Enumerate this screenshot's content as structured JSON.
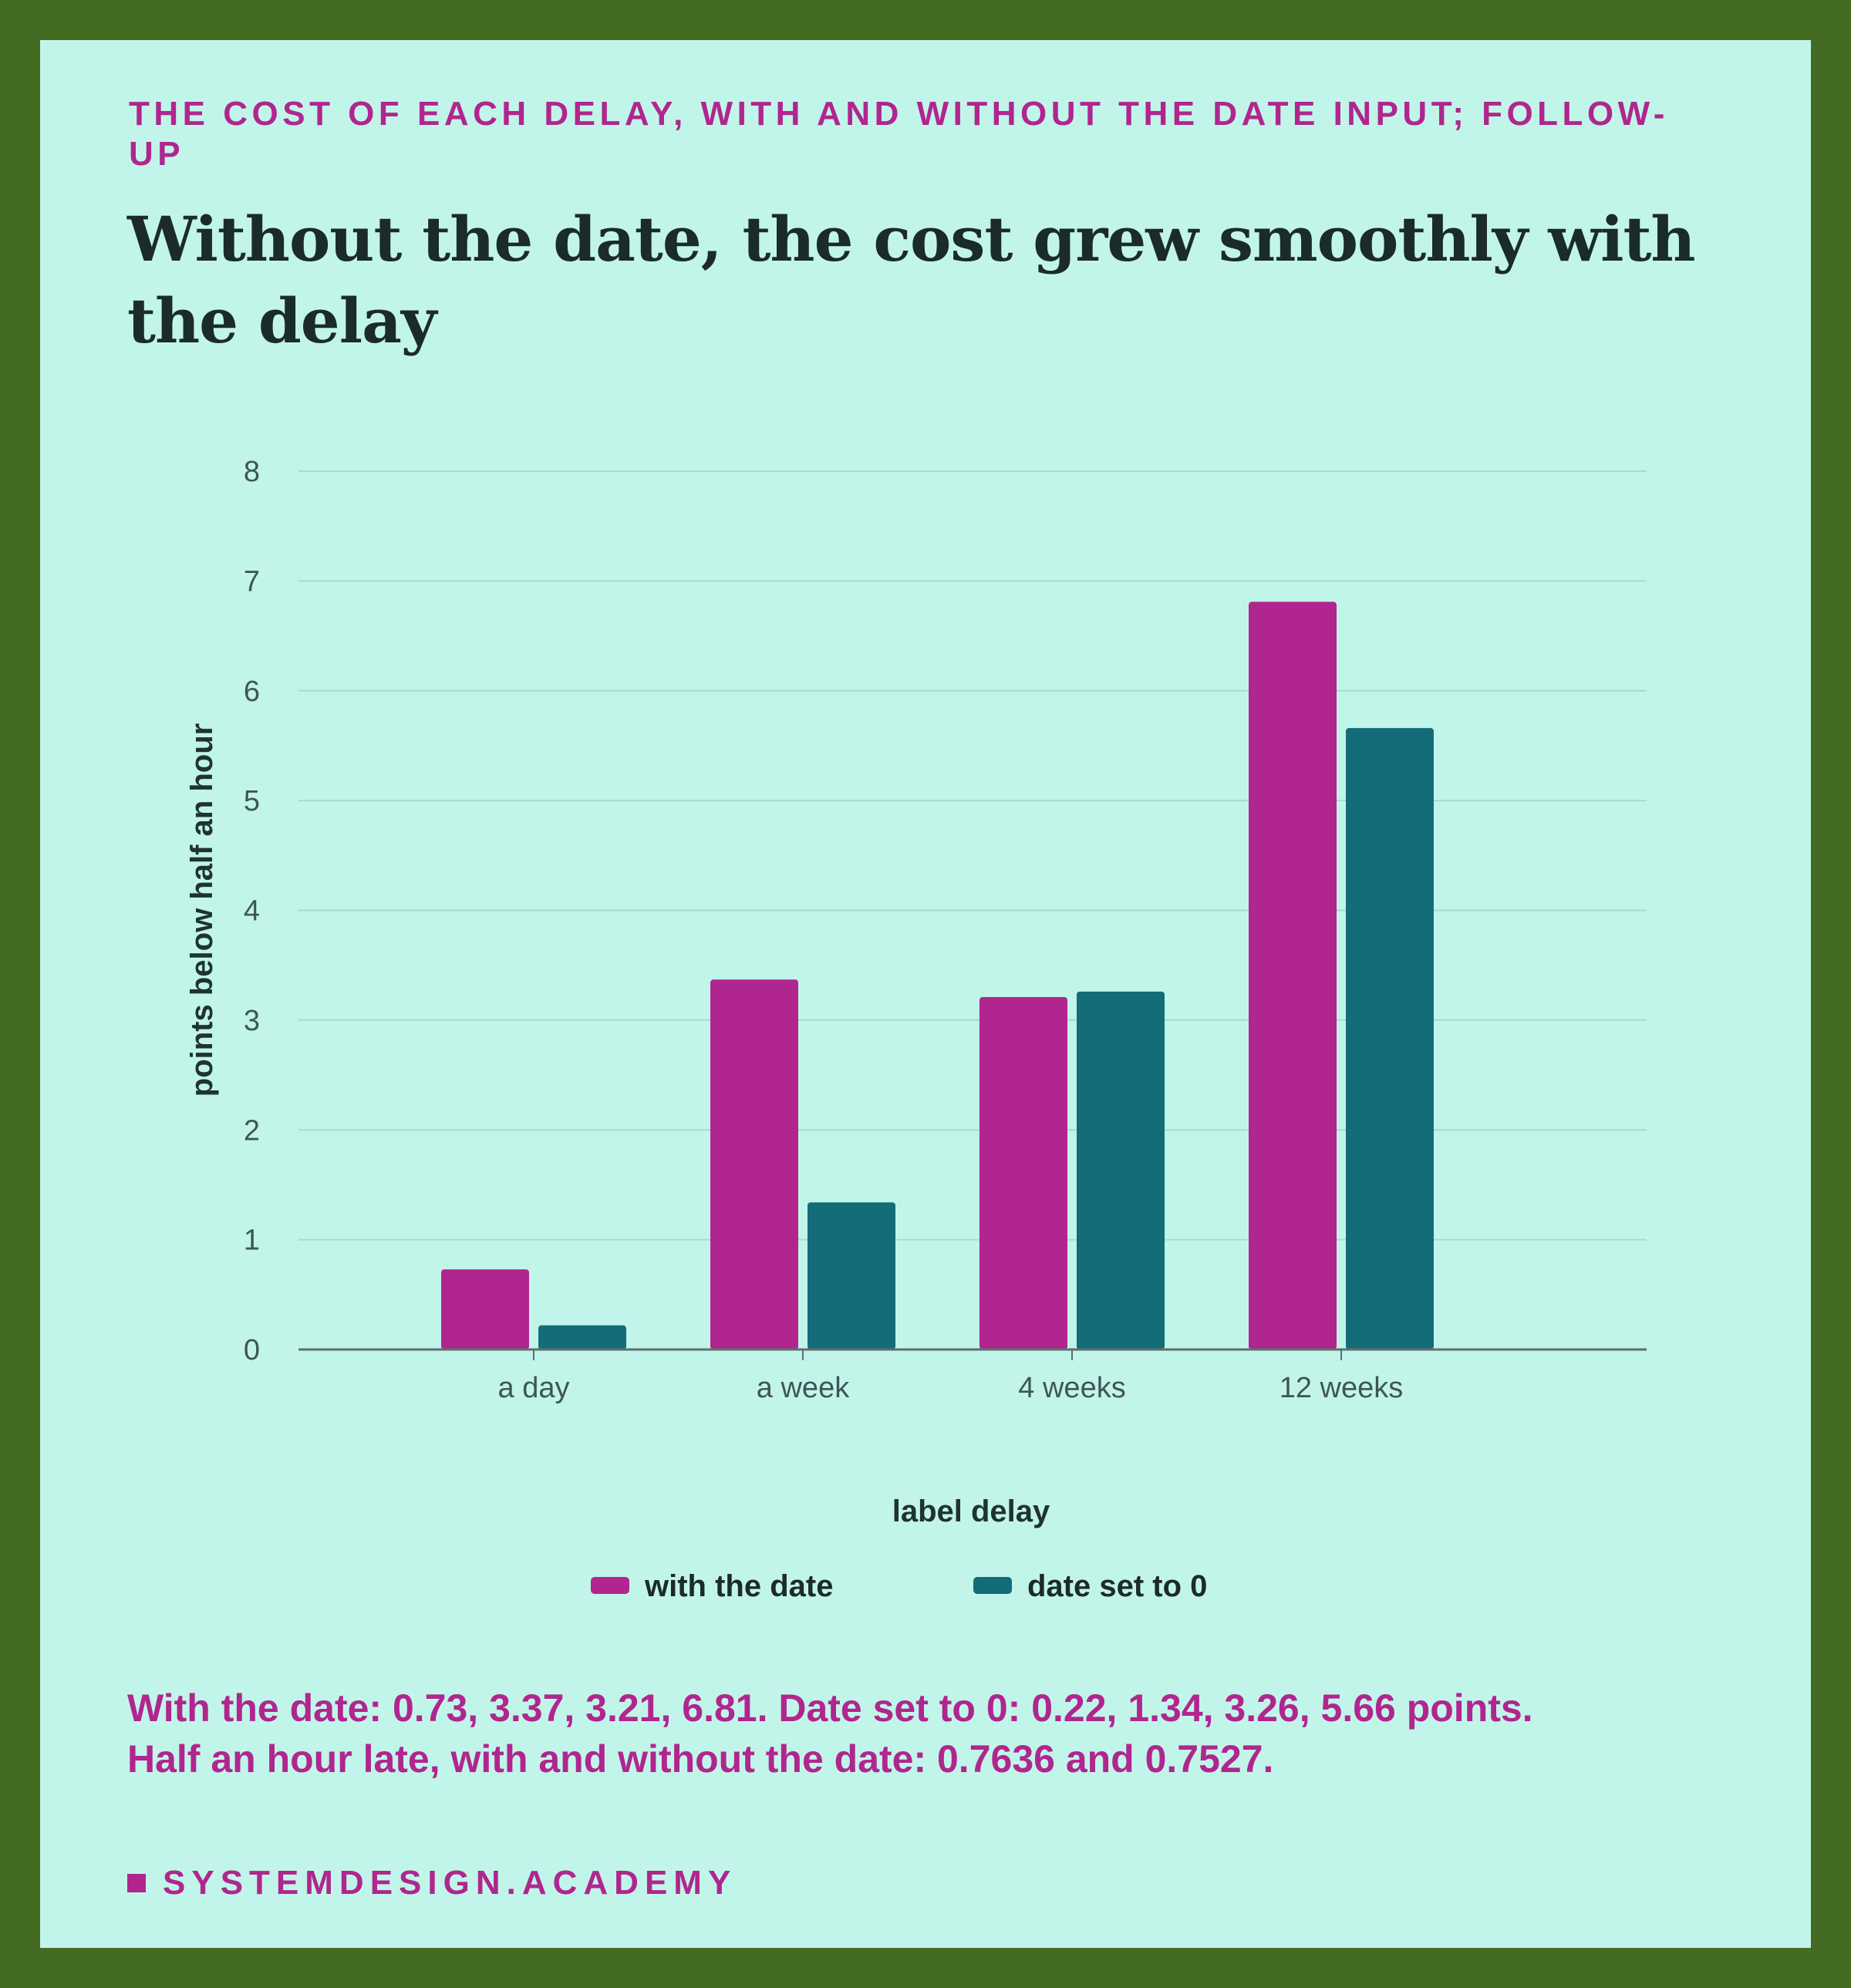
{
  "kicker": "THE COST OF EACH DELAY, WITH AND WITHOUT THE DATE INPUT; FOLLOW-UP",
  "headline": "Without the date, the cost grew smoothly with the delay",
  "summary": {
    "line1": "With the date: 0.73, 3.37, 3.21, 6.81. Date set to 0: 0.22, 1.34, 3.26, 5.66 points.",
    "line2": "Half an hour late, with and without the date: 0.7636 and 0.7527."
  },
  "brand": "SYSTEMDESIGN.ACADEMY",
  "colors": {
    "frame": "#446b22",
    "background": "#c2f5ea",
    "accent": "#b0268e",
    "series_with_date": "#b0268e",
    "series_date_zero": "#136c78",
    "gridline": "#a6dccc"
  },
  "chart_data": {
    "type": "bar",
    "categories": [
      "a day",
      "a week",
      "4 weeks",
      "12 weeks"
    ],
    "series": [
      {
        "name": "with the date",
        "values": [
          0.73,
          3.37,
          3.21,
          6.81
        ]
      },
      {
        "name": "date set to 0",
        "values": [
          0.22,
          1.34,
          3.26,
          5.66
        ]
      }
    ],
    "title": "",
    "xlabel": "label delay",
    "ylabel": "points below half an hour",
    "ylim": [
      0,
      8
    ],
    "yticks": [
      0,
      1,
      2,
      3,
      4,
      5,
      6,
      7,
      8
    ],
    "grid": true,
    "legend": "bottom"
  }
}
